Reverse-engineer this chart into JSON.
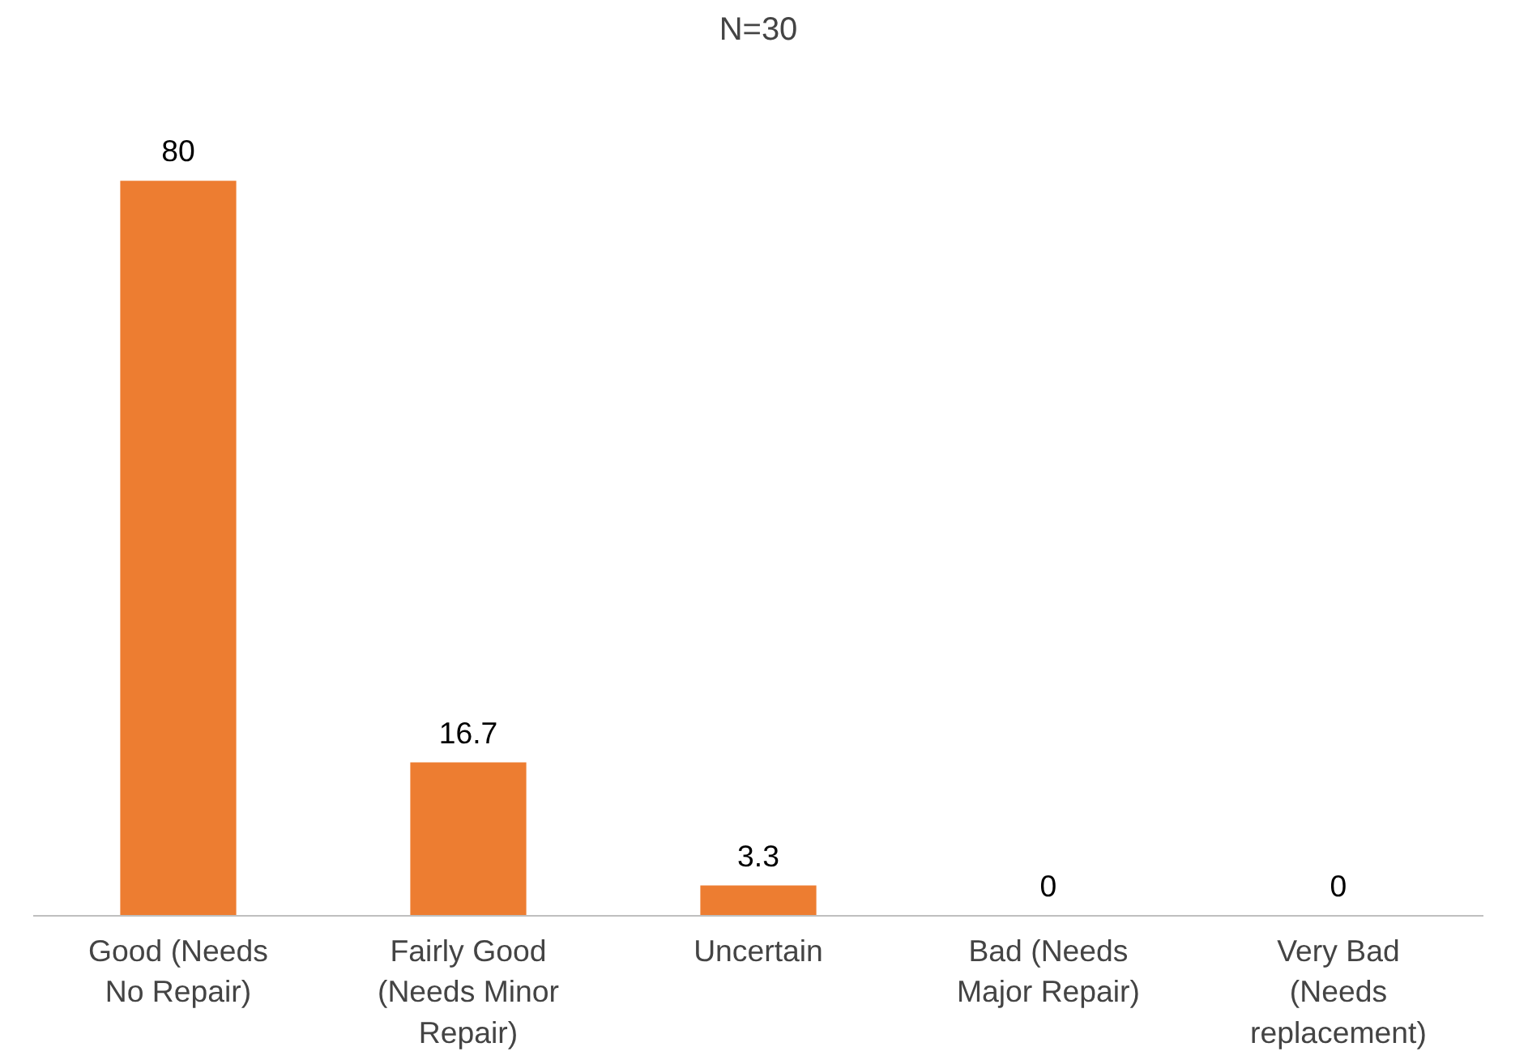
{
  "chart_data": {
    "type": "bar",
    "title": "N=30",
    "categories": [
      "Good (Needs No Repair)",
      "Fairly Good (Needs Minor Repair)",
      "Uncertain",
      "Bad (Needs Major Repair)",
      "Very Bad (Needs replacement)"
    ],
    "values": [
      80,
      16.7,
      3.3,
      0,
      0
    ],
    "color": "#ed7d31",
    "data_labels": true
  }
}
